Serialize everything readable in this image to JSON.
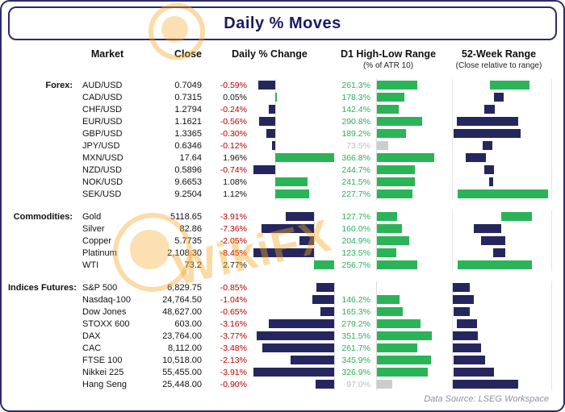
{
  "title": "Daily % Moves",
  "footer_source": "Data Source: LSEG Workspace",
  "watermark_text": "WikiFX",
  "colors": {
    "navy": "#26265E",
    "green": "#2BB457",
    "green_text": "#2EAE5B",
    "red": "#B80000",
    "gray_bar": "#CDCDCD",
    "gray_text": "#BDBDBD",
    "border": "#2B2B6B",
    "watermark_orange": "#F5A623"
  },
  "header": {
    "market": "Market",
    "close": "Close",
    "daily": "Daily % Change",
    "d1": "D1 High-Low Range",
    "d1_sub": "(% of ATR 10)",
    "wk52": "52-Week Range",
    "wk52_sub": "(Close relative to range)"
  },
  "chart_data": {
    "type": "table",
    "title": "Daily % Moves",
    "d1_scale_note": "D1 bars proportional to % of ATR 10, gray when below 100%",
    "daily_scale_note": "Daily % bars scaled per group, navy negative / green positive",
    "wk52_note": "52-week bars show close position relative to 52-week range (no numeric labels shown)",
    "groups": [
      {
        "key": "forex",
        "label": "Forex:",
        "rows": [
          {
            "market": "AUD/USD",
            "close": "0.7049",
            "daily_pct": -0.59,
            "daily_label": "-0.59%",
            "d1_pct": 261.3,
            "d1_label": "261.3%",
            "wk52": {
              "start": 0.38,
              "end": 0.78,
              "color": "green"
            }
          },
          {
            "market": "CAD/USD",
            "close": "0.7315",
            "daily_pct": 0.05,
            "daily_label": "0.05%",
            "d1_pct": 178.3,
            "d1_label": "178.3%",
            "wk52": {
              "start": 0.42,
              "end": 0.52,
              "color": "navy"
            }
          },
          {
            "market": "CHF/USD",
            "close": "1.2794",
            "daily_pct": -0.24,
            "daily_label": "-0.24%",
            "d1_pct": 142.4,
            "d1_label": "142.4%",
            "wk52": {
              "start": 0.32,
              "end": 0.43,
              "color": "navy"
            }
          },
          {
            "market": "EUR/USD",
            "close": "1.1621",
            "daily_pct": -0.56,
            "daily_label": "-0.56%",
            "d1_pct": 290.8,
            "d1_label": "290.8%",
            "wk52": {
              "start": 0.04,
              "end": 0.66,
              "color": "navy"
            }
          },
          {
            "market": "GBP/USD",
            "close": "1.3365",
            "daily_pct": -0.3,
            "daily_label": "-0.30%",
            "d1_pct": 189.2,
            "d1_label": "189.2%",
            "wk52": {
              "start": 0.01,
              "end": 0.69,
              "color": "navy"
            }
          },
          {
            "market": "JPY/USD",
            "close": "0.6346",
            "daily_pct": -0.12,
            "daily_label": "-0.12%",
            "d1_pct": 73.5,
            "d1_label": "73.5%",
            "wk52": {
              "start": 0.3,
              "end": 0.4,
              "color": "navy"
            }
          },
          {
            "market": "MXN/USD",
            "close": "17.64",
            "daily_pct": 1.96,
            "daily_label": "1.96%",
            "d1_pct": 366.8,
            "d1_label": "366.8%",
            "wk52": {
              "start": 0.13,
              "end": 0.34,
              "color": "navy"
            }
          },
          {
            "market": "NZD/USD",
            "close": "0.5896",
            "daily_pct": -0.74,
            "daily_label": "-0.74%",
            "d1_pct": 244.7,
            "d1_label": "244.7%",
            "wk52": {
              "start": 0.32,
              "end": 0.42,
              "color": "navy"
            }
          },
          {
            "market": "NOK/USD",
            "close": "9.6653",
            "daily_pct": 1.08,
            "daily_label": "1.08%",
            "d1_pct": 241.5,
            "d1_label": "241.5%",
            "wk52": {
              "start": 0.37,
              "end": 0.41,
              "color": "navy"
            }
          },
          {
            "market": "SEK/USD",
            "close": "9.2504",
            "daily_pct": 1.12,
            "daily_label": "1.12%",
            "d1_pct": 227.7,
            "d1_label": "227.7%",
            "wk52": {
              "start": 0.05,
              "end": 0.97,
              "color": "green"
            }
          }
        ]
      },
      {
        "key": "commodities",
        "label": "Commodities:",
        "rows": [
          {
            "market": "Gold",
            "close": "5118.65",
            "daily_pct": -3.91,
            "daily_label": "-3.91%",
            "d1_pct": 127.7,
            "d1_label": "127.7%",
            "wk52": {
              "start": 0.49,
              "end": 0.8,
              "color": "green"
            }
          },
          {
            "market": "Silver",
            "close": "82.86",
            "daily_pct": -7.36,
            "daily_label": "-7.36%",
            "d1_pct": 160.0,
            "d1_label": "160.0%",
            "wk52": {
              "start": 0.21,
              "end": 0.49,
              "color": "navy"
            }
          },
          {
            "market": "Copper",
            "close": "5.7735",
            "daily_pct": -2.05,
            "daily_label": "-2.05%",
            "d1_pct": 204.9,
            "d1_label": "204.9%",
            "wk52": {
              "start": 0.29,
              "end": 0.53,
              "color": "navy"
            }
          },
          {
            "market": "Platinum",
            "close": "2,108.30",
            "daily_pct": -8.45,
            "daily_label": "-8.45%",
            "d1_pct": 123.5,
            "d1_label": "123.5%",
            "wk52": {
              "start": 0.41,
              "end": 0.53,
              "color": "navy"
            }
          },
          {
            "market": "WTI",
            "close": "73.2",
            "daily_pct": 2.77,
            "daily_label": "2.77%",
            "d1_pct": 256.7,
            "d1_label": "256.7%",
            "wk52": {
              "start": 0.05,
              "end": 0.8,
              "color": "green"
            }
          }
        ]
      },
      {
        "key": "indices",
        "label": "Indices Futures:",
        "rows": [
          {
            "market": "S&P 500",
            "close": "6,829.75",
            "daily_pct": -0.85,
            "daily_label": "-0.85%",
            "d1_pct": null,
            "d1_label": "",
            "wk52": {
              "start": 0.0,
              "end": 0.17,
              "color": "navy"
            }
          },
          {
            "market": "Nasdaq-100",
            "close": "24,764.50",
            "daily_pct": -1.04,
            "daily_label": "-1.04%",
            "d1_pct": 146.2,
            "d1_label": "146.2%",
            "wk52": {
              "start": 0.0,
              "end": 0.21,
              "color": "navy"
            }
          },
          {
            "market": "Dow Jones",
            "close": "48,627.00",
            "daily_pct": -0.65,
            "daily_label": "-0.65%",
            "d1_pct": 165.3,
            "d1_label": "165.3%",
            "wk52": {
              "start": 0.01,
              "end": 0.17,
              "color": "navy"
            }
          },
          {
            "market": "STOXX 600",
            "close": "603.00",
            "daily_pct": -3.16,
            "daily_label": "-3.16%",
            "d1_pct": 279.2,
            "d1_label": "279.2%",
            "wk52": {
              "start": 0.04,
              "end": 0.25,
              "color": "navy"
            }
          },
          {
            "market": "DAX",
            "close": "23,764.00",
            "daily_pct": -3.77,
            "daily_label": "-3.77%",
            "d1_pct": 351.5,
            "d1_label": "351.5%",
            "wk52": {
              "start": 0.0,
              "end": 0.25,
              "color": "navy"
            }
          },
          {
            "market": "CAC",
            "close": "8,112.00",
            "daily_pct": -3.48,
            "daily_label": "-3.48%",
            "d1_pct": 261.7,
            "d1_label": "261.7%",
            "wk52": {
              "start": 0.0,
              "end": 0.29,
              "color": "navy"
            }
          },
          {
            "market": "FTSE 100",
            "close": "10,518.00",
            "daily_pct": -2.13,
            "daily_label": "-2.13%",
            "d1_pct": 345.9,
            "d1_label": "345.9%",
            "wk52": {
              "start": 0.01,
              "end": 0.33,
              "color": "navy"
            }
          },
          {
            "market": "Nikkei 225",
            "close": "55,455.00",
            "daily_pct": -3.91,
            "daily_label": "-3.91%",
            "d1_pct": 326.9,
            "d1_label": "326.9%",
            "wk52": {
              "start": 0.01,
              "end": 0.42,
              "color": "navy"
            }
          },
          {
            "market": "Hang Seng",
            "close": "25,448.00",
            "daily_pct": -0.9,
            "daily_label": "-0.90%",
            "d1_pct": 97.0,
            "d1_label": "97.0%",
            "wk52": {
              "start": 0.0,
              "end": 0.66,
              "color": "navy"
            }
          }
        ]
      }
    ]
  }
}
